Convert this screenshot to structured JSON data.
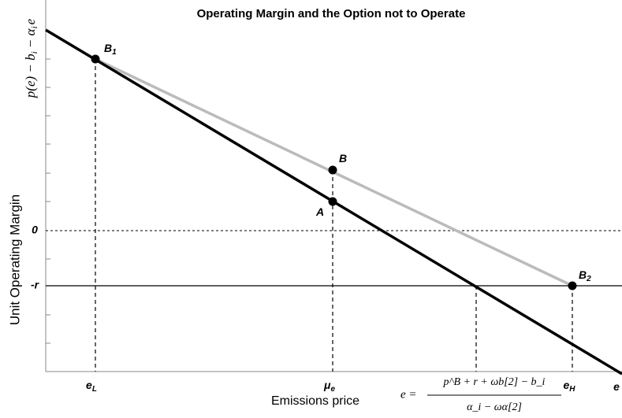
{
  "title": "Operating Margin and the Option not to Operate",
  "x_axis_label": "Emissions price",
  "y_axis_label": "Unit Operating Margin",
  "y_formula": {
    "text": "p(e) − b",
    "sub1": "i",
    "mid": " − α",
    "sub2": "i",
    "tail": "e"
  },
  "y_ticks": {
    "zero": "0",
    "minus_r": "-r"
  },
  "points": [
    {
      "label": "B",
      "sub": "1"
    },
    {
      "label": "B",
      "sub": ""
    },
    {
      "label": "A",
      "sub": ""
    },
    {
      "label": "B",
      "sub": "2"
    }
  ],
  "x_ticks": [
    {
      "label": "e",
      "sub": "L"
    },
    {
      "label": "μ",
      "sub": "e"
    },
    {
      "label": "e",
      "sub": "H"
    },
    {
      "label": "e",
      "sub": ""
    }
  ],
  "threshold_formula": {
    "lhs": "e =",
    "numerator": "p^B + r + ωb[2] − b_i",
    "denominator": "α_i − ωα[2]"
  }
}
